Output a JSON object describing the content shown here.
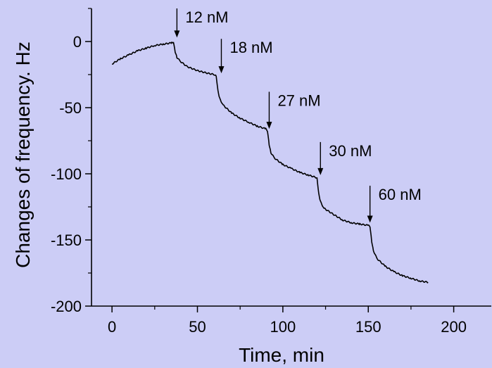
{
  "chart_data": {
    "type": "line",
    "title": "",
    "xlabel": "Time, min",
    "ylabel": "Changes of frequency. Hz",
    "xlim": [
      -12,
      222
    ],
    "ylim": [
      -200,
      25
    ],
    "x_ticks": [
      0,
      50,
      100,
      150,
      200
    ],
    "x_tick_labels": [
      "0",
      "50",
      "100",
      "150",
      "200"
    ],
    "y_ticks": [
      0,
      -50,
      -100,
      -150,
      -200
    ],
    "y_tick_labels": [
      "0",
      "-50",
      "-100",
      "-150",
      "-200"
    ],
    "grid": false,
    "line_color": "#000000",
    "background_color": "#cccdf6",
    "series": [
      {
        "x": [
          0,
          5,
          10,
          15,
          20,
          25,
          30,
          35,
          36,
          37,
          38,
          40,
          44,
          50,
          56,
          60,
          61,
          62,
          63,
          65,
          70,
          75,
          80,
          85,
          90,
          91,
          92,
          93,
          95,
          100,
          105,
          110,
          115,
          120,
          121,
          122,
          124,
          130,
          135,
          140,
          145,
          150,
          151,
          152,
          153,
          155,
          160,
          165,
          170,
          175,
          180,
          185
        ],
        "y": [
          -17,
          -13,
          -10,
          -7,
          -5,
          -3,
          -2,
          -1,
          -1,
          -8,
          -12,
          -15,
          -19,
          -22,
          -24,
          -25,
          -26,
          -37,
          -43,
          -48,
          -54,
          -58,
          -61,
          -64,
          -66,
          -68,
          -78,
          -84,
          -88,
          -93,
          -96,
          -99,
          -101,
          -103,
          -115,
          -121,
          -126,
          -131,
          -135,
          -137,
          -138,
          -139,
          -140,
          -151,
          -158,
          -164,
          -170,
          -174,
          -177,
          -179,
          -181,
          -182
        ]
      }
    ],
    "annotations": [
      {
        "label": "12 nM",
        "x": 38,
        "arrow_top_y": 25,
        "arrow_tip_y": 3
      },
      {
        "label": "18 nM",
        "x": 64,
        "arrow_top_y": 2,
        "arrow_tip_y": -24
      },
      {
        "label": "27 nM",
        "x": 92,
        "arrow_top_y": -38,
        "arrow_tip_y": -66
      },
      {
        "label": "30 nM",
        "x": 122,
        "arrow_top_y": -76,
        "arrow_tip_y": -101
      },
      {
        "label": "60 nM",
        "x": 151,
        "arrow_top_y": -109,
        "arrow_tip_y": -137
      }
    ]
  }
}
